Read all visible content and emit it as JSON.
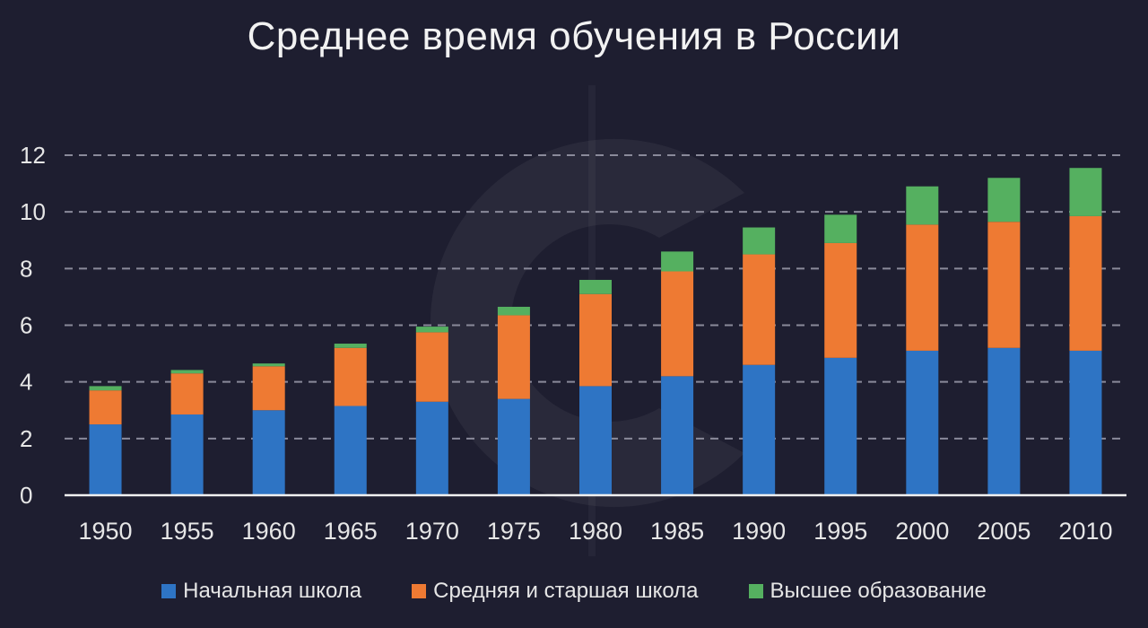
{
  "chart_data": {
    "type": "bar",
    "stacked": true,
    "title": "Среднее время обучения в России",
    "categories": [
      "1950",
      "1955",
      "1960",
      "1965",
      "1970",
      "1975",
      "1980",
      "1985",
      "1990",
      "1995",
      "2000",
      "2005",
      "2010"
    ],
    "series": [
      {
        "name": "Начальная школа",
        "color": "#2e74c4",
        "values": [
          2.5,
          2.85,
          3.0,
          3.15,
          3.3,
          3.4,
          3.85,
          4.2,
          4.6,
          4.85,
          5.1,
          5.2,
          5.1
        ]
      },
      {
        "name": "Средняя и старшая школа",
        "color": "#ee7a33",
        "values": [
          1.2,
          1.45,
          1.55,
          2.05,
          2.45,
          2.95,
          3.25,
          3.7,
          3.9,
          4.05,
          4.45,
          4.45,
          4.75
        ]
      },
      {
        "name": "Высшее образование",
        "color": "#55b060",
        "values": [
          0.15,
          0.12,
          0.1,
          0.15,
          0.2,
          0.3,
          0.5,
          0.7,
          0.95,
          1.0,
          1.35,
          1.55,
          1.7
        ]
      }
    ],
    "ylim": [
      0,
      12
    ],
    "yticks": [
      0,
      2,
      4,
      6,
      8,
      10,
      12
    ],
    "grid": true,
    "legend": "bottom"
  }
}
